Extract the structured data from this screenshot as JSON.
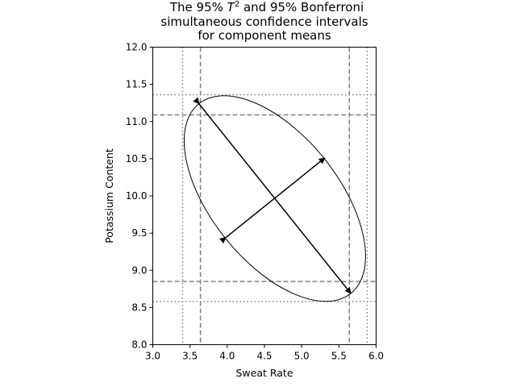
{
  "chart_data": {
    "type": "scatter",
    "title_line1_pre": "The 95% ",
    "title_line1_var": "T",
    "title_line1_sup": "2",
    "title_line1_post": " and 95% Bonferroni",
    "title_line2": "simultaneous confidence intervals",
    "title_line3": "for component means",
    "xlabel": "Sweat Rate",
    "ylabel": "Potassium Content",
    "xlim": [
      3.0,
      6.0
    ],
    "ylim": [
      8.0,
      12.0
    ],
    "xticks": [
      "3.0",
      "3.5",
      "4.0",
      "4.5",
      "5.0",
      "5.5",
      "6.0"
    ],
    "yticks": [
      "8.0",
      "8.5",
      "9.0",
      "9.5",
      "10.0",
      "10.5",
      "11.0",
      "11.5",
      "12.0"
    ],
    "grid": false,
    "ellipse": {
      "center": [
        4.64,
        9.965
      ],
      "major_axis_end_a": [
        3.62,
        11.24
      ],
      "major_axis_end_b": [
        5.66,
        8.69
      ],
      "minor_axis_end_a": [
        3.98,
        9.44
      ],
      "minor_axis_end_b": [
        5.31,
        10.51
      ]
    },
    "t2_intervals": {
      "x_range": [
        3.4,
        5.88
      ],
      "y_range": [
        8.58,
        11.36
      ],
      "linestyle": "dotted"
    },
    "bonferroni_intervals": {
      "x_range": [
        3.64,
        5.64
      ],
      "y_range": [
        8.85,
        11.09
      ],
      "linestyle": "dashed"
    }
  }
}
